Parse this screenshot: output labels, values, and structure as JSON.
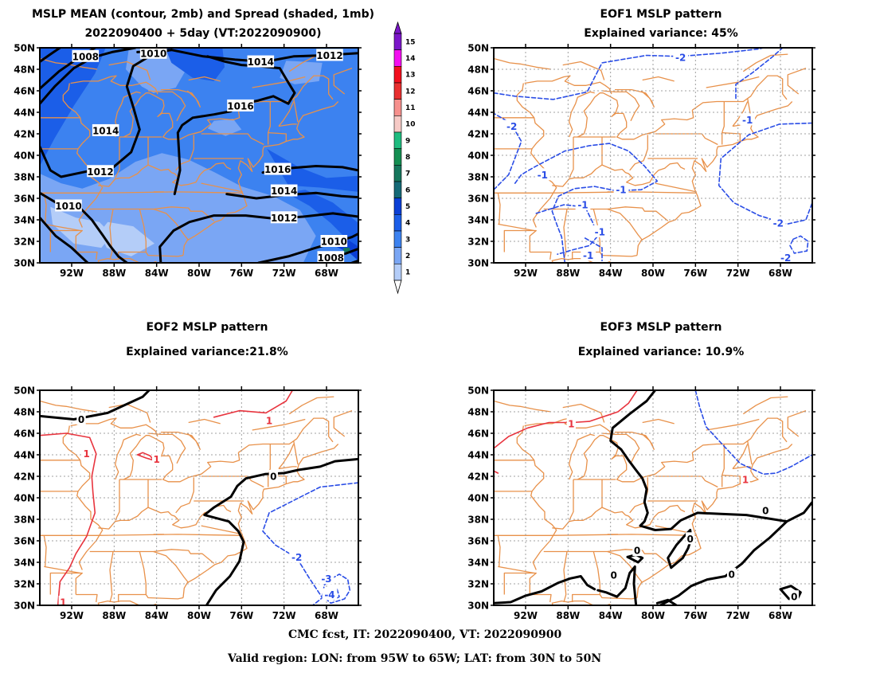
{
  "footer": {
    "line1": "CMC fcst, IT: 2022090400, VT: 2022090900",
    "line2": "Valid region: LON: from 95W to 65W; LAT: from 30N to 50N"
  },
  "panels": [
    {
      "id": "mean",
      "title1": "MSLP MEAN (contour, 2mb) and Spread (shaded, 1mb)",
      "title2": "2022090400 + 5day (VT:2022090900)"
    },
    {
      "id": "eof1",
      "title1": "EOF1 MSLP pattern",
      "title2": "Explained variance: 45%"
    },
    {
      "id": "eof2",
      "title1": "EOF2 MSLP pattern",
      "title2": "Explained variance:21.8%"
    },
    {
      "id": "eof3",
      "title1": "EOF3 MSLP pattern",
      "title2": "Explained variance: 10.9%"
    }
  ],
  "axes": {
    "lat_labels": [
      "50N",
      "48N",
      "46N",
      "44N",
      "42N",
      "40N",
      "38N",
      "36N",
      "34N",
      "32N",
      "30N"
    ],
    "lon_labels": [
      "92W",
      "88W",
      "84W",
      "80W",
      "76W",
      "72W",
      "68W"
    ],
    "lat_range": [
      30,
      50
    ],
    "lon_range": [
      -95,
      -65
    ]
  },
  "colorbar": {
    "labels": [
      "15",
      "14",
      "13",
      "12",
      "11",
      "10",
      "9",
      "8",
      "7",
      "6",
      "5",
      "4",
      "3",
      "2",
      "1"
    ],
    "colors": [
      "#7b16c9",
      "#f30ff0",
      "#f20f1d",
      "#e82f2f",
      "#f6908d",
      "#f6cac6",
      "#1ebc7f",
      "#148e52",
      "#16775d",
      "#156a77",
      "#0b3fd6",
      "#1b5ee8",
      "#3c82f0",
      "#7aa6f4",
      "#b4cdf8"
    ]
  },
  "contour_labels": {
    "mean": [
      {
        "text": "1014",
        "lon": -88.8,
        "lat": 42.3
      },
      {
        "text": "1012",
        "lon": -89.3,
        "lat": 38.5
      },
      {
        "text": "1010",
        "lon": -92.3,
        "lat": 35.3
      },
      {
        "text": "1010",
        "lon": -84.3,
        "lat": 49.5
      },
      {
        "text": "1008",
        "lon": -90.7,
        "lat": 49.2
      },
      {
        "text": "1014",
        "lon": -74.2,
        "lat": 48.7
      },
      {
        "text": "1012",
        "lon": -67.7,
        "lat": 49.3
      },
      {
        "text": "1016",
        "lon": -76.1,
        "lat": 44.6
      },
      {
        "text": "1016",
        "lon": -72.6,
        "lat": 38.7
      },
      {
        "text": "1014",
        "lon": -72.0,
        "lat": 36.7
      },
      {
        "text": "1012",
        "lon": -72.0,
        "lat": 34.2
      },
      {
        "text": "1010",
        "lon": -67.3,
        "lat": 32.0
      },
      {
        "text": "1008",
        "lon": -67.6,
        "lat": 30.5
      }
    ],
    "eof1": [
      {
        "text": "-2",
        "lon": -77.4,
        "lat": 49.1
      },
      {
        "text": "-2",
        "lon": -93.3,
        "lat": 42.7
      },
      {
        "text": "-1",
        "lon": -90.4,
        "lat": 38.2
      },
      {
        "text": "-1",
        "lon": -83.0,
        "lat": 36.8
      },
      {
        "text": "-1",
        "lon": -86.6,
        "lat": 35.4
      },
      {
        "text": "-1",
        "lon": -85.0,
        "lat": 32.9
      },
      {
        "text": "-1",
        "lon": -86.1,
        "lat": 30.7
      },
      {
        "text": "-1",
        "lon": -71.1,
        "lat": 43.3
      },
      {
        "text": "-2",
        "lon": -68.2,
        "lat": 33.7
      },
      {
        "text": "-2",
        "lon": -67.5,
        "lat": 30.5
      }
    ],
    "eof2": [
      {
        "text": "0",
        "lon": -91.1,
        "lat": 47.3
      },
      {
        "text": "1",
        "lon": -90.6,
        "lat": 44.1
      },
      {
        "text": "1",
        "lon": -84.0,
        "lat": 43.6
      },
      {
        "text": "1",
        "lon": -73.4,
        "lat": 47.2
      },
      {
        "text": "0",
        "lon": -73.0,
        "lat": 42.0
      },
      {
        "text": "-2",
        "lon": -70.8,
        "lat": 34.5
      },
      {
        "text": "-3",
        "lon": -68.0,
        "lat": 32.5
      },
      {
        "text": "-4",
        "lon": -67.7,
        "lat": 31.0
      },
      {
        "text": "1",
        "lon": -92.8,
        "lat": 30.3
      }
    ],
    "eof3": [
      {
        "text": "1",
        "lon": -87.7,
        "lat": 46.9
      },
      {
        "text": "1",
        "lon": -71.3,
        "lat": 41.7
      },
      {
        "text": "0",
        "lon": -69.4,
        "lat": 38.8
      },
      {
        "text": "0",
        "lon": -76.5,
        "lat": 36.2
      },
      {
        "text": "0",
        "lon": -81.5,
        "lat": 35.1
      },
      {
        "text": "0",
        "lon": -83.7,
        "lat": 32.8
      },
      {
        "text": "0",
        "lon": -72.6,
        "lat": 32.9
      },
      {
        "text": "0",
        "lon": -66.7,
        "lat": 30.8
      }
    ]
  }
}
